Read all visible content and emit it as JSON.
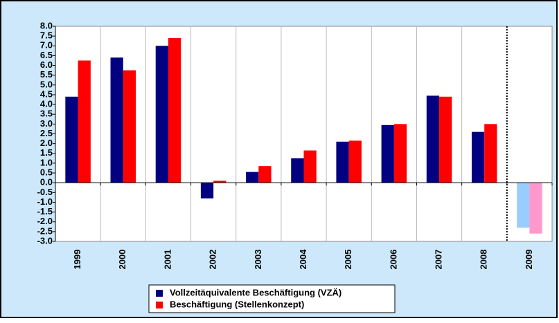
{
  "chart_data": {
    "type": "bar",
    "categories": [
      "1999",
      "2000",
      "2001",
      "2002",
      "2003",
      "2004",
      "2005",
      "2006",
      "2007",
      "2008",
      "2009"
    ],
    "series": [
      {
        "name": "Vollzeitäquivalente Beschäftigung (VZÄ)",
        "color": "#000080",
        "colors": [
          "#000080",
          "#000080",
          "#000080",
          "#000080",
          "#000080",
          "#000080",
          "#000080",
          "#000080",
          "#000080",
          "#000080",
          "#99ccff"
        ],
        "values": [
          4.4,
          6.4,
          7.0,
          -0.8,
          0.55,
          1.25,
          2.1,
          2.95,
          4.45,
          2.6,
          -2.3
        ]
      },
      {
        "name": "Beschäftigung (Stellenkonzept)",
        "color": "#ff0000",
        "colors": [
          "#ff0000",
          "#ff0000",
          "#ff0000",
          "#ff0000",
          "#ff0000",
          "#ff0000",
          "#ff0000",
          "#ff0000",
          "#ff0000",
          "#ff0000",
          "#ff99cc"
        ],
        "values": [
          6.25,
          5.75,
          7.4,
          0.1,
          0.85,
          1.65,
          2.15,
          3.0,
          4.4,
          3.0,
          -2.6
        ]
      }
    ],
    "ylim": [
      -3,
      8
    ],
    "yticks": [
      {
        "value": -3,
        "label": "-3.0"
      },
      {
        "value": -2.5,
        "label": "-2.5"
      },
      {
        "value": -2,
        "label": "-2.0"
      },
      {
        "value": -1.5,
        "label": "-1.5"
      },
      {
        "value": -1,
        "label": "-1.0"
      },
      {
        "value": -0.5,
        "label": "-0.5"
      },
      {
        "value": 0,
        "label": "0.0"
      },
      {
        "value": 0.5,
        "label": "0.5"
      },
      {
        "value": 1,
        "label": "1.0"
      },
      {
        "value": 1.5,
        "label": "1.5"
      },
      {
        "value": 2,
        "label": "2.0"
      },
      {
        "value": 2.5,
        "label": "2.5"
      },
      {
        "value": 3,
        "label": "3.0"
      },
      {
        "value": 3.5,
        "label": "3.5"
      },
      {
        "value": 4,
        "label": "4.0"
      },
      {
        "value": 4.5,
        "label": "4.5"
      },
      {
        "value": 5,
        "label": "5.0"
      },
      {
        "value": 5.5,
        "label": "5.5"
      },
      {
        "value": 6,
        "label": "6.0"
      },
      {
        "value": 6.5,
        "label": "6.5"
      },
      {
        "value": 7,
        "label": "7.0"
      },
      {
        "value": 7.5,
        "label": "7.5"
      },
      {
        "value": 8,
        "label": "8.0"
      }
    ],
    "grid": "vertical"
  }
}
